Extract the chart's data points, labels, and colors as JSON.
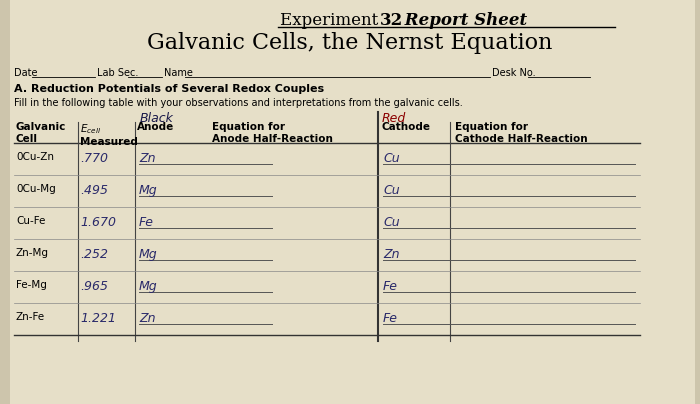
{
  "bg_color": "#cdc5ac",
  "paper_color": "#e6dfc8",
  "title1_normal": "Experiment ",
  "title1_bold": "32",
  "title1_italic_bold": " Report Sheet",
  "title2": "Galvanic Cells, the Nernst Equation",
  "rows": [
    [
      "0Cu-Zn",
      ".770",
      "Zn",
      "Cu"
    ],
    [
      "0Cu-Mg",
      ".495",
      "Mg",
      "Cu"
    ],
    [
      "Cu-Fe",
      "1.670",
      "Fe",
      "Cu"
    ],
    [
      "Zn-Mg",
      ".252",
      "Mg",
      "Zn"
    ],
    [
      "Fe-Mg",
      ".965",
      "Mg",
      "Fe"
    ],
    [
      "Zn-Fe",
      "1.221",
      "Zn",
      "Fe"
    ]
  ],
  "hw_color": "#2a2a6a",
  "red_color": "#8b0000",
  "black_hw_color": "#1a1a4a",
  "line_color": "#666666"
}
